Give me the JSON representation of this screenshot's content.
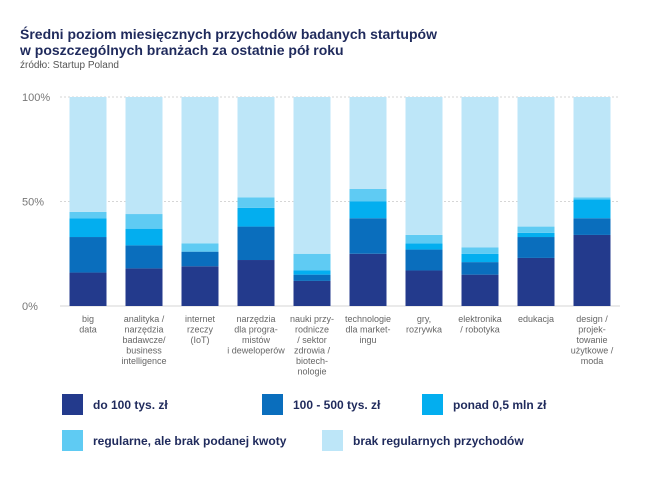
{
  "chart_data": {
    "type": "bar",
    "stacked": true,
    "title_lines": [
      "Średni poziom miesięcznych przychodów badanych startupów",
      "w poszczególnych branżach za ostatnie pół roku"
    ],
    "source": "źródło: Startup Poland",
    "ylim": [
      0,
      100
    ],
    "yticks": [
      "0%",
      "50%",
      "100%"
    ],
    "categories": [
      [
        "big",
        "data"
      ],
      [
        "analityka /",
        "narzędzia",
        "badawcze/",
        "business",
        "intelligence"
      ],
      [
        "internet",
        "rzeczy",
        "(IoT)"
      ],
      [
        "narzędzia",
        "dla progra-",
        "mistów",
        "i deweloperów"
      ],
      [
        "nauki przy-",
        "rodnicze",
        "/ sektor",
        "zdrowia /",
        "biotech-",
        "nologie"
      ],
      [
        "technologie",
        "dla market-",
        "ingu"
      ],
      [
        "gry,",
        "rozrywka"
      ],
      [
        "elektronika",
        "/ robotyka"
      ],
      [
        "edukacja"
      ],
      [
        "design /",
        "projek-",
        "towanie",
        "użytkowe /",
        "moda"
      ]
    ],
    "series": [
      {
        "name": "do 100 tys. zł",
        "color": "#233a8c",
        "values": [
          16,
          18,
          19,
          22,
          12,
          25,
          17,
          15,
          23,
          34
        ]
      },
      {
        "name": "100 - 500 tys. zł",
        "color": "#0a6ebd",
        "values": [
          17,
          11,
          7,
          16,
          3,
          17,
          10,
          6,
          10,
          8
        ]
      },
      {
        "name": "ponad 0,5 mln zł",
        "color": "#03aeef",
        "values": [
          9,
          8,
          0,
          9,
          2,
          8,
          3,
          4,
          2,
          9
        ]
      },
      {
        "name": "regularne, ale brak podanej kwoty",
        "color": "#5fcbf3",
        "values": [
          3,
          7,
          4,
          5,
          8,
          6,
          4,
          3,
          3,
          1
        ]
      },
      {
        "name": "brak regularnych przychodów",
        "color": "#bde6f8",
        "values": [
          55,
          56,
          70,
          48,
          75,
          44,
          66,
          72,
          62,
          48
        ]
      }
    ]
  }
}
